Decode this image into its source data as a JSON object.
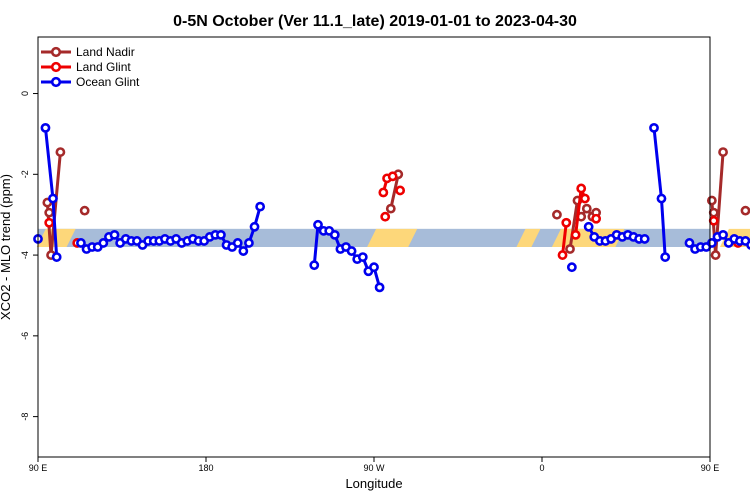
{
  "chart_data": {
    "type": "line",
    "title": "0-5N October (Ver 11.1_late)   2019-01-01 to 2023-04-30",
    "xlabel": "Longitude",
    "ylabel": "XCO2 - MLO trend (ppm)",
    "xlim": [
      90,
      450
    ],
    "ylim": [
      -9.0,
      1.4
    ],
    "x_ticks": [
      {
        "value": 90,
        "label": "90 E"
      },
      {
        "value": 180,
        "label": "180"
      },
      {
        "value": 270,
        "label": "90 W"
      },
      {
        "value": 360,
        "label": "0"
      },
      {
        "value": 450,
        "label": "90 E"
      },
      {
        "value": 540,
        "label": "180"
      }
    ],
    "y_ticks": [
      0,
      -2,
      -4,
      -6,
      -8
    ],
    "legend_position": "top-left",
    "legend": [
      {
        "name": "Land Nadir",
        "color": "#a52a2a"
      },
      {
        "name": "Land Glint",
        "color": "#ee0000"
      },
      {
        "name": "Ocean Glint",
        "color": "#0000ee"
      }
    ],
    "background_band": {
      "y_range": [
        -3.8,
        -3.35
      ],
      "ocean_color": "#a7bcd9",
      "land_color": "#fdd77a",
      "land_segments": [
        [
          92,
          108
        ],
        [
          269,
          291
        ],
        [
          349,
          357
        ],
        [
          368,
          402
        ],
        [
          458,
          473
        ]
      ]
    },
    "series": [
      {
        "name": "Land Nadir",
        "color": "#a52a2a",
        "segments": [
          [
            [
              95,
              -2.7
            ],
            [
              97,
              -4.0
            ],
            [
              102,
              -1.45
            ]
          ],
          [
            [
              96,
              -2.95
            ]
          ],
          [
            [
              115,
              -2.9
            ]
          ],
          [
            [
              279,
              -2.85
            ],
            [
              283,
              -2.0
            ]
          ],
          [
            [
              368,
              -3.0
            ]
          ],
          [
            [
              375,
              -3.85
            ],
            [
              379,
              -2.65
            ]
          ],
          [
            [
              381,
              -3.05
            ],
            [
              384,
              -2.85
            ],
            [
              387,
              -3.05
            ],
            [
              389,
              -2.95
            ]
          ],
          [
            [
              451,
              -2.65
            ],
            [
              453,
              -4.0
            ],
            [
              457,
              -1.45
            ]
          ],
          [
            [
              452,
              -2.95
            ]
          ],
          [
            [
              469,
              -2.9
            ]
          ]
        ]
      },
      {
        "name": "Land Glint",
        "color": "#ee0000",
        "segments": [
          [
            [
              96,
              -3.2
            ]
          ],
          [
            [
              111,
              -3.7
            ]
          ],
          [
            [
              275,
              -2.45
            ],
            [
              277,
              -2.1
            ],
            [
              280,
              -2.05
            ]
          ],
          [
            [
              276,
              -3.05
            ]
          ],
          [
            [
              284,
              -2.4
            ]
          ],
          [
            [
              371,
              -4.0
            ],
            [
              373,
              -3.2
            ]
          ],
          [
            [
              378,
              -3.5
            ],
            [
              381,
              -2.35
            ],
            [
              383,
              -2.6
            ]
          ],
          [
            [
              389,
              -3.1
            ]
          ],
          [
            [
              452,
              -3.15
            ]
          ],
          [
            [
              465,
              -3.7
            ]
          ]
        ]
      },
      {
        "name": "Ocean Glint",
        "color": "#0000ee",
        "segments": [
          [
            [
              90,
              -3.6
            ]
          ],
          [
            [
              94,
              -0.85
            ],
            [
              98,
              -2.6
            ],
            [
              100,
              -4.05
            ]
          ],
          [
            [
              113,
              -3.7
            ],
            [
              116,
              -3.85
            ],
            [
              119,
              -3.8
            ],
            [
              122,
              -3.8
            ],
            [
              125,
              -3.7
            ],
            [
              128,
              -3.55
            ],
            [
              131,
              -3.5
            ],
            [
              134,
              -3.7
            ],
            [
              137,
              -3.6
            ],
            [
              140,
              -3.65
            ],
            [
              143,
              -3.65
            ],
            [
              146,
              -3.75
            ],
            [
              149,
              -3.65
            ],
            [
              152,
              -3.65
            ],
            [
              155,
              -3.65
            ],
            [
              158,
              -3.6
            ],
            [
              161,
              -3.65
            ],
            [
              164,
              -3.6
            ],
            [
              167,
              -3.7
            ],
            [
              170,
              -3.65
            ],
            [
              173,
              -3.6
            ],
            [
              176,
              -3.65
            ],
            [
              179,
              -3.65
            ],
            [
              182,
              -3.55
            ],
            [
              185,
              -3.5
            ],
            [
              188,
              -3.5
            ],
            [
              191,
              -3.75
            ],
            [
              194,
              -3.8
            ],
            [
              197,
              -3.7
            ],
            [
              200,
              -3.9
            ],
            [
              203,
              -3.7
            ],
            [
              206,
              -3.3
            ],
            [
              209,
              -2.8
            ]
          ],
          [
            [
              238,
              -4.25
            ],
            [
              240,
              -3.25
            ],
            [
              243,
              -3.4
            ],
            [
              246,
              -3.4
            ],
            [
              249,
              -3.5
            ],
            [
              252,
              -3.85
            ],
            [
              255,
              -3.8
            ],
            [
              258,
              -3.9
            ],
            [
              261,
              -4.1
            ],
            [
              264,
              -4.05
            ],
            [
              267,
              -4.4
            ],
            [
              270,
              -4.3
            ],
            [
              273,
              -4.8
            ]
          ],
          [
            [
              376,
              -4.3
            ]
          ],
          [
            [
              385,
              -3.3
            ],
            [
              388,
              -3.55
            ],
            [
              391,
              -3.65
            ],
            [
              394,
              -3.65
            ],
            [
              397,
              -3.6
            ],
            [
              400,
              -3.5
            ],
            [
              403,
              -3.55
            ],
            [
              406,
              -3.5
            ],
            [
              409,
              -3.55
            ],
            [
              412,
              -3.6
            ],
            [
              415,
              -3.6
            ]
          ],
          [
            [
              420,
              -0.85
            ],
            [
              424,
              -2.6
            ],
            [
              426,
              -4.05
            ]
          ],
          [
            [
              439,
              -3.7
            ],
            [
              442,
              -3.85
            ],
            [
              445,
              -3.8
            ],
            [
              448,
              -3.8
            ],
            [
              451,
              -3.7
            ],
            [
              454,
              -3.55
            ],
            [
              457,
              -3.5
            ],
            [
              460,
              -3.7
            ],
            [
              463,
              -3.6
            ],
            [
              466,
              -3.65
            ],
            [
              469,
              -3.65
            ],
            [
              472,
              -3.75
            ]
          ]
        ]
      }
    ]
  }
}
